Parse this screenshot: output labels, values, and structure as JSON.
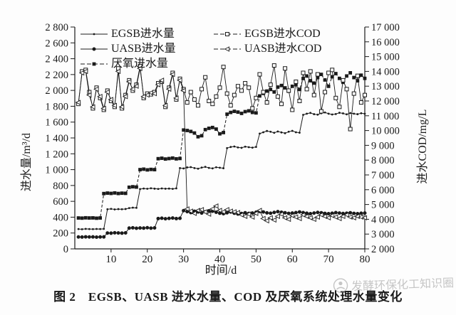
{
  "figure": {
    "caption": "图 2　EGSB、UASB 进水水量、COD 及厌氧系统处理水量变化",
    "watermark": "发酵环保化工知识圈"
  },
  "chart_data": {
    "type": "line",
    "title": "",
    "xlabel": "时间/d",
    "ylabel_left": "进水量/m³/d",
    "ylabel_right": "进水COD/mg/L",
    "grid": false,
    "legend_position": "top-inside",
    "x_range": [
      0,
      80
    ],
    "y_left_range": [
      0,
      2800
    ],
    "y_right_range": [
      2000,
      17000
    ],
    "x_tick_values": [
      10,
      20,
      30,
      40,
      50,
      60,
      70,
      80
    ],
    "x_tick_labels": [
      "10",
      "20",
      "30",
      "40",
      "50",
      "60",
      "70",
      "80"
    ],
    "y_left_tick_values": [
      0,
      200,
      400,
      600,
      800,
      1000,
      1200,
      1400,
      1600,
      1800,
      2000,
      2200,
      2400,
      2600,
      2800
    ],
    "y_left_tick_labels": [
      "0",
      "200",
      "400",
      "600",
      "800",
      "1 000",
      "1 200",
      "1 400",
      "1 600",
      "1 800",
      "2 000",
      "2 200",
      "2 400",
      "2 600",
      "2 800"
    ],
    "y_right_tick_values": [
      2000,
      3000,
      4000,
      5000,
      6000,
      7000,
      8000,
      9000,
      10000,
      11000,
      12000,
      13000,
      14000,
      15000,
      16000,
      17000
    ],
    "y_right_tick_labels": [
      "2 000",
      "3 000",
      "4 000",
      "5 000",
      "6 000",
      "7 000",
      "8 000",
      "9 000",
      "10 000",
      "11 000",
      "12 000",
      "13 000",
      "14 000",
      "15 000",
      "16 000",
      "17 000"
    ],
    "line_color": "#1a1a1a",
    "x_start": 1,
    "x_step": 1,
    "series": [
      {
        "name": "EGSB进水量",
        "axis": "left",
        "marker": "dot",
        "line": "solid",
        "values": [
          250,
          248,
          252,
          250,
          249,
          251,
          250,
          252,
          500,
          505,
          498,
          502,
          500,
          503,
          515,
          520,
          518,
          755,
          762,
          758,
          765,
          760,
          756,
          763,
          759,
          761,
          757,
          764,
          1020,
          1015,
          1028,
          1032,
          1020,
          1012,
          1026,
          1035,
          1022,
          1016,
          1030,
          1024,
          1018,
          1272,
          1286,
          1292,
          1280,
          1275,
          1290,
          1283,
          1278,
          1287,
          1455,
          1472,
          1488,
          1478,
          1465,
          1482,
          1470,
          1460,
          1478,
          1490,
          1472,
          1466,
          1692,
          1706,
          1716,
          1700,
          1694,
          1712,
          1722,
          1706,
          1696,
          1702,
          1718,
          1710,
          1698,
          1714,
          1706,
          1700,
          1712,
          1705
        ]
      },
      {
        "name": "UASB进水量",
        "axis": "left",
        "marker": "circle",
        "line": "solid",
        "values": [
          150,
          149,
          152,
          150,
          151,
          148,
          150,
          151,
          200,
          198,
          203,
          201,
          199,
          202,
          262,
          266,
          260,
          264,
          262,
          267,
          261,
          265,
          383,
          387,
          380,
          385,
          389,
          382,
          386,
          482,
          470,
          458,
          474,
          466,
          452,
          468,
          480,
          476,
          462,
          450,
          444,
          456,
          466,
          450,
          440,
          446,
          456,
          448,
          452,
          462,
          472,
          466,
          454,
          450,
          460,
          470,
          462,
          456,
          448,
          452,
          458,
          466,
          458,
          450,
          444,
          452,
          460,
          456,
          448,
          444,
          450,
          458,
          452,
          446,
          450,
          456,
          448,
          444,
          450,
          452
        ]
      },
      {
        "name": "厌氧进水量",
        "axis": "left",
        "marker": "square",
        "line": "dashed",
        "values": [
          390,
          388,
          392,
          390,
          391,
          387,
          390,
          698,
          704,
          700,
          706,
          699,
          703,
          701,
          778,
          784,
          780,
          1000,
          1006,
          997,
          1003,
          1000,
          1138,
          1144,
          1134,
          1140,
          1146,
          1136,
          1141,
          1500,
          1494,
          1482,
          1462,
          1415,
          1428,
          1505,
          1522,
          1532,
          1512,
          1452,
          1468,
          1700,
          1722,
          1736,
          1726,
          1710,
          1732,
          1742,
          1722,
          1716,
          1930,
          1962,
          1992,
          2012,
          1980,
          2042,
          2062,
          2032,
          1990,
          2052,
          2072,
          2012,
          2150,
          2182,
          2122,
          2092,
          2162,
          2202,
          2132,
          2052,
          2172,
          2212,
          2152,
          2102,
          2182,
          2222,
          2162,
          2122,
          2192,
          2152
        ]
      },
      {
        "name": "EGSB进水COD",
        "axis": "right",
        "marker": "open-square",
        "line": "solid",
        "values": [
          11800,
          14000,
          14100,
          12600,
          11500,
          12900,
          12200,
          11400,
          12700,
          12000,
          11600,
          14200,
          11500,
          12400,
          13400,
          12700,
          13100,
          14350,
          12200,
          12500,
          12450,
          12600,
          13200,
          13300,
          11600,
          12900,
          13900,
          12100,
          13500,
          12800,
          11900,
          12600,
          12100,
          11700,
          12800,
          13600,
          12000,
          11800,
          12300,
          12900,
          14300,
          12500,
          11700,
          12400,
          13000,
          12700,
          13200,
          12900,
          11500,
          12200,
          13800,
          12600,
          11900,
          13100,
          14400,
          12300,
          11800,
          14200,
          12700,
          11400,
          13300,
          12000,
          13900,
          12800,
          14000,
          12400,
          13800,
          11300,
          12600,
          13900,
          14100,
          12200,
          11600,
          13400,
          12800,
          10100,
          12500,
          13700,
          11900,
          12400
        ]
      },
      {
        "name": "UASB进水COD",
        "axis": "right",
        "marker": "open-triangle-left",
        "line": "solid",
        "values": [
          11900,
          13900,
          14000,
          12400,
          11600,
          12800,
          12300,
          11500,
          12600,
          12100,
          11700,
          14000,
          11600,
          12300,
          13300,
          12800,
          13000,
          14200,
          12300,
          12400,
          12550,
          12500,
          13100,
          13400,
          11700,
          12800,
          13800,
          12200,
          13400,
          12700,
          4700,
          4550,
          4400,
          4600,
          4650,
          4500,
          4350,
          4700,
          4900,
          4600,
          4500,
          4650,
          4550,
          4500,
          4450,
          4300,
          4200,
          4350,
          4150,
          4400,
          4600,
          4050,
          3900,
          4100,
          3950,
          4200,
          4350,
          4100,
          4000,
          4250,
          4150,
          4050,
          4300,
          4200,
          4100,
          4000,
          4150,
          4300,
          4200,
          4100,
          4250,
          4150,
          4050,
          4200,
          4300,
          4150,
          4100,
          4200,
          4150,
          4100
        ]
      }
    ]
  }
}
